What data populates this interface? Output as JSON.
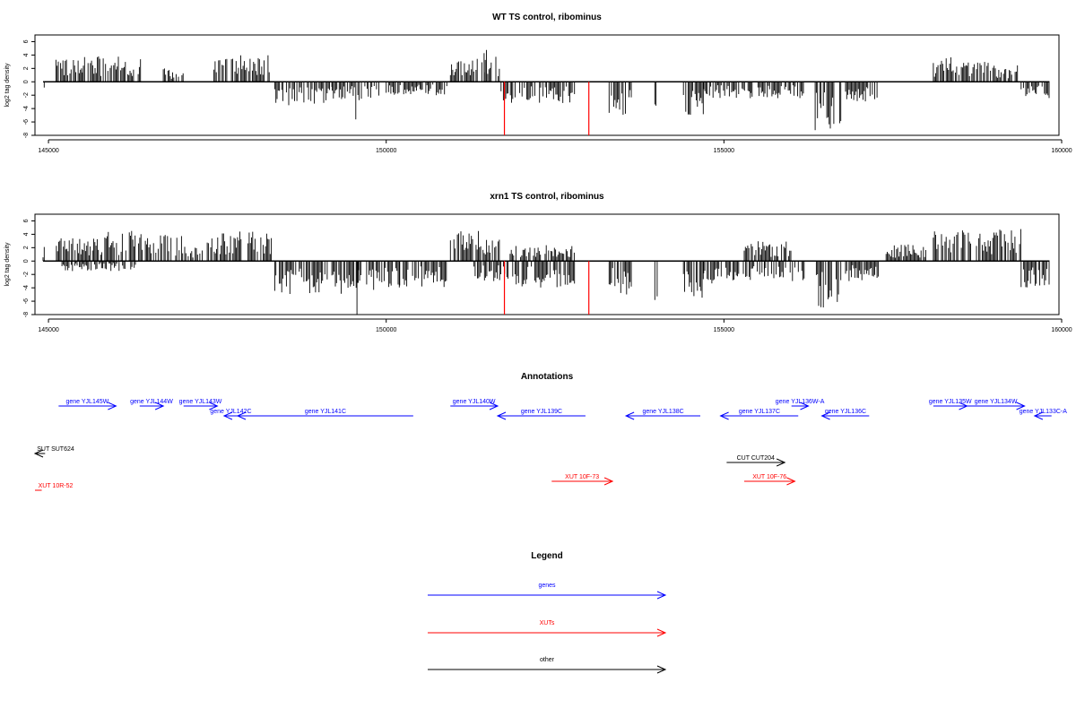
{
  "chart_data": [
    {
      "type": "bar",
      "title": "WT TS control, ribominus",
      "ylabel": "log2 tag density",
      "xlabel": "",
      "xlim": [
        144800,
        159960
      ],
      "ylim": [
        -8,
        7
      ],
      "x_ticks": [
        145000,
        150000,
        155000,
        160000
      ],
      "x_tick_labels": [
        "145000",
        "150000",
        "155000",
        "160000"
      ],
      "y_ticks": [
        6,
        4,
        2,
        0,
        -2,
        -4,
        -6,
        -8
      ],
      "y_tick_labels": [
        "6",
        "4",
        "2",
        "0",
        "-2",
        "-4",
        "-6",
        "-8"
      ],
      "grid": false,
      "colors": {
        "density": "#000000",
        "marker": "#ff0000"
      },
      "marker_lines": [
        {
          "x": 151750,
          "y": -8
        },
        {
          "x": 153000,
          "y": -8
        }
      ],
      "density_profile": [
        {
          "start": 144920,
          "end": 144940,
          "level": 1.0,
          "sign": -1
        },
        {
          "start": 145110,
          "end": 145500,
          "level": 3.5,
          "sign": 1
        },
        {
          "start": 145500,
          "end": 146400,
          "level": 3.8,
          "sign": 1
        },
        {
          "start": 146700,
          "end": 147000,
          "level": 2.0,
          "sign": 1
        },
        {
          "start": 147450,
          "end": 148200,
          "level": 4.0,
          "sign": 1
        },
        {
          "start": 148250,
          "end": 148350,
          "level": 4.0,
          "sign": 1
        },
        {
          "start": 148350,
          "end": 149200,
          "level": 3.5,
          "sign": -1
        },
        {
          "start": 149200,
          "end": 149900,
          "level": 3.0,
          "sign": -1
        },
        {
          "start": 149550,
          "end": 149600,
          "level": 6.0,
          "sign": -1
        },
        {
          "start": 150000,
          "end": 150900,
          "level": 2.0,
          "sign": -1
        },
        {
          "start": 150950,
          "end": 151700,
          "level": 3.8,
          "sign": 1
        },
        {
          "start": 151450,
          "end": 151500,
          "level": 6.0,
          "sign": 1
        },
        {
          "start": 151700,
          "end": 152800,
          "level": 3.2,
          "sign": -1
        },
        {
          "start": 153300,
          "end": 153650,
          "level": 5.0,
          "sign": -1
        },
        {
          "start": 153960,
          "end": 154020,
          "level": 5.0,
          "sign": -1
        },
        {
          "start": 154400,
          "end": 154700,
          "level": 5.5,
          "sign": -1
        },
        {
          "start": 154700,
          "end": 155400,
          "level": 2.5,
          "sign": -1
        },
        {
          "start": 155400,
          "end": 156200,
          "level": 2.5,
          "sign": -1
        },
        {
          "start": 156350,
          "end": 156750,
          "level": 7.5,
          "sign": -1
        },
        {
          "start": 156800,
          "end": 157300,
          "level": 3.0,
          "sign": -1
        },
        {
          "start": 158100,
          "end": 159000,
          "level": 3.8,
          "sign": 1
        },
        {
          "start": 159000,
          "end": 159350,
          "level": 2.5,
          "sign": 1
        },
        {
          "start": 159400,
          "end": 159820,
          "level": 2.5,
          "sign": -1
        }
      ]
    },
    {
      "type": "bar",
      "title": "xrn1 TS control, ribominus",
      "ylabel": "log2 tag density",
      "xlabel": "",
      "xlim": [
        144800,
        159960
      ],
      "ylim": [
        -8,
        7
      ],
      "x_ticks": [
        145000,
        150000,
        155000,
        160000
      ],
      "x_tick_labels": [
        "145000",
        "150000",
        "155000",
        "160000"
      ],
      "y_ticks": [
        6,
        4,
        2,
        0,
        -2,
        -4,
        -6,
        -8
      ],
      "y_tick_labels": [
        "6",
        "4",
        "2",
        "0",
        "-2",
        "-4",
        "-6",
        "-8"
      ],
      "grid": false,
      "colors": {
        "density": "#000000",
        "marker": "#ff0000"
      },
      "marker_lines": [
        {
          "x": 151750,
          "y": -8
        },
        {
          "x": 153000,
          "y": -8
        }
      ],
      "density_profile": [
        {
          "start": 144920,
          "end": 144960,
          "level": 2.3,
          "sign": 1
        },
        {
          "start": 145100,
          "end": 145800,
          "level": 3.5,
          "sign": 1
        },
        {
          "start": 145800,
          "end": 146400,
          "level": 4.5,
          "sign": 1
        },
        {
          "start": 145200,
          "end": 146300,
          "level": 1.5,
          "sign": -1
        },
        {
          "start": 146400,
          "end": 147000,
          "level": 4.0,
          "sign": 1
        },
        {
          "start": 146450,
          "end": 146480,
          "level": 6.5,
          "sign": 1
        },
        {
          "start": 147000,
          "end": 147300,
          "level": 2.5,
          "sign": 1
        },
        {
          "start": 147350,
          "end": 148300,
          "level": 4.5,
          "sign": 1
        },
        {
          "start": 148350,
          "end": 149400,
          "level": 5.0,
          "sign": -1
        },
        {
          "start": 149400,
          "end": 150200,
          "level": 4.5,
          "sign": -1
        },
        {
          "start": 149550,
          "end": 149600,
          "level": 8.0,
          "sign": -1
        },
        {
          "start": 150200,
          "end": 150900,
          "level": 4.0,
          "sign": -1
        },
        {
          "start": 150950,
          "end": 151700,
          "level": 4.5,
          "sign": 1
        },
        {
          "start": 151300,
          "end": 151700,
          "level": 3.0,
          "sign": -1
        },
        {
          "start": 151700,
          "end": 152800,
          "level": 4.0,
          "sign": -1
        },
        {
          "start": 151800,
          "end": 152800,
          "level": 2.5,
          "sign": 1
        },
        {
          "start": 153300,
          "end": 153650,
          "level": 5.0,
          "sign": -1
        },
        {
          "start": 153960,
          "end": 154020,
          "level": 6.0,
          "sign": -1
        },
        {
          "start": 154400,
          "end": 154700,
          "level": 6.0,
          "sign": -1
        },
        {
          "start": 154700,
          "end": 155600,
          "level": 3.5,
          "sign": -1
        },
        {
          "start": 155300,
          "end": 156000,
          "level": 3.0,
          "sign": 1
        },
        {
          "start": 155600,
          "end": 156200,
          "level": 3.0,
          "sign": -1
        },
        {
          "start": 156350,
          "end": 156750,
          "level": 7.0,
          "sign": -1
        },
        {
          "start": 156800,
          "end": 157300,
          "level": 3.0,
          "sign": -1
        },
        {
          "start": 157400,
          "end": 158000,
          "level": 2.5,
          "sign": 1
        },
        {
          "start": 158100,
          "end": 159400,
          "level": 4.8,
          "sign": 1
        },
        {
          "start": 159400,
          "end": 159820,
          "level": 4.0,
          "sign": -1
        }
      ]
    }
  ],
  "annotations": {
    "title": "Annotations",
    "colors": {
      "genes": "#0000ff",
      "XUTs": "#ff0000",
      "other": "#000000"
    },
    "features": [
      {
        "label": "gene YJL145W",
        "start": 145150,
        "end": 146000,
        "strand": "+",
        "kind": "genes",
        "row": 1
      },
      {
        "label": "gene YJL144W",
        "start": 146350,
        "end": 146700,
        "strand": "+",
        "kind": "genes",
        "row": 1
      },
      {
        "label": "gene YJL143W",
        "start": 147000,
        "end": 147500,
        "strand": "+",
        "kind": "genes",
        "row": 1
      },
      {
        "label": "gene YJL142C",
        "start": 147600,
        "end": 147800,
        "strand": "-",
        "kind": "genes",
        "row": 2
      },
      {
        "label": "gene YJL141C",
        "start": 147800,
        "end": 150400,
        "strand": "-",
        "kind": "genes",
        "row": 2
      },
      {
        "label": "gene YJL140W",
        "start": 150950,
        "end": 151650,
        "strand": "+",
        "kind": "genes",
        "row": 1
      },
      {
        "label": "gene YJL139C",
        "start": 151650,
        "end": 152950,
        "strand": "-",
        "kind": "genes",
        "row": 2
      },
      {
        "label": "gene YJL138C",
        "start": 153550,
        "end": 154650,
        "strand": "-",
        "kind": "genes",
        "row": 2
      },
      {
        "label": "gene YJL137C",
        "start": 154950,
        "end": 156100,
        "strand": "-",
        "kind": "genes",
        "row": 2
      },
      {
        "label": "gene YJL136W-A",
        "start": 156000,
        "end": 156250,
        "strand": "+",
        "kind": "genes",
        "row": 1
      },
      {
        "label": "gene YJL136C",
        "start": 156450,
        "end": 157150,
        "strand": "-",
        "kind": "genes",
        "row": 2
      },
      {
        "label": "gene YJL135W",
        "start": 158100,
        "end": 158600,
        "strand": "+",
        "kind": "genes",
        "row": 1
      },
      {
        "label": "gene YJL134W",
        "start": 158600,
        "end": 159450,
        "strand": "+",
        "kind": "genes",
        "row": 1
      },
      {
        "label": "gene YJL133C-A",
        "start": 159600,
        "end": 159850,
        "strand": "-",
        "kind": "genes",
        "row": 2
      },
      {
        "label": "SUT SUT624",
        "start": 144600,
        "end": 144950,
        "strand": "-",
        "kind": "other",
        "row": 3
      },
      {
        "label": "CUT CUT204",
        "start": 155040,
        "end": 155900,
        "strand": "+",
        "kind": "other",
        "row": 4
      },
      {
        "label": "XUT 10F-73",
        "start": 152450,
        "end": 153350,
        "strand": "+",
        "kind": "XUTs",
        "row": 5
      },
      {
        "label": "XUT 10F-76",
        "start": 155300,
        "end": 156050,
        "strand": "+",
        "kind": "XUTs",
        "row": 5
      },
      {
        "label": "XUT 10R-52",
        "start": 144550,
        "end": 144900,
        "strand": "none",
        "kind": "XUTs",
        "row": 6
      }
    ]
  },
  "legend": {
    "title": "Legend",
    "items": [
      {
        "label": "genes",
        "kind": "genes"
      },
      {
        "label": "XUTs",
        "kind": "XUTs"
      },
      {
        "label": "other",
        "kind": "other"
      }
    ]
  }
}
